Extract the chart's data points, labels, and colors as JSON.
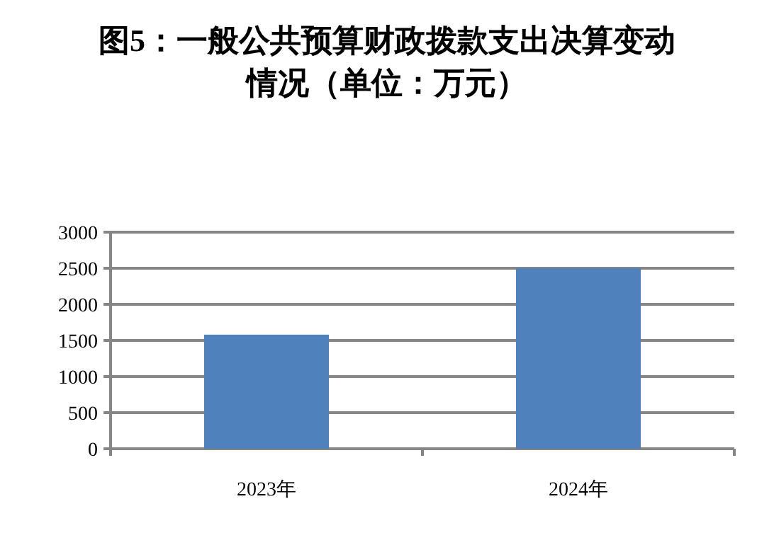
{
  "chart_data": {
    "type": "bar",
    "title": "图5：一般公共预算财政拨款支出决算变动情况（单位：万元）",
    "categories": [
      "2023年",
      "2024年"
    ],
    "values": [
      1580,
      2500
    ],
    "color": "#4f81bd",
    "ylim": [
      0,
      3000
    ],
    "yticks": [
      0,
      500,
      1000,
      1500,
      2000,
      2500,
      3000
    ],
    "grid": "y"
  }
}
